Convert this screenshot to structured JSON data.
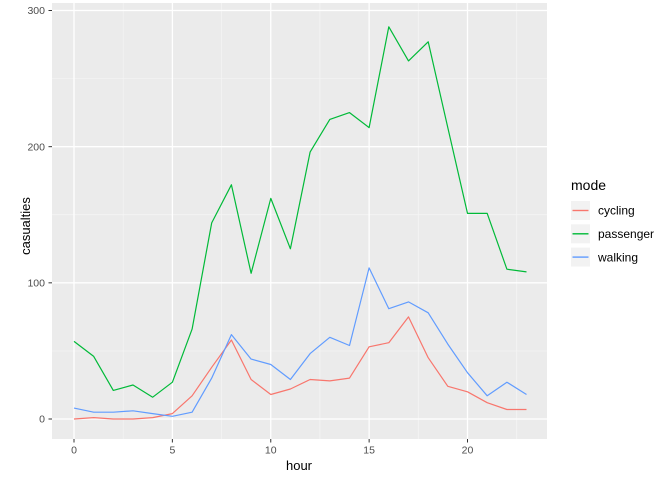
{
  "chart_data": {
    "type": "line",
    "title": "",
    "xlabel": "hour",
    "ylabel": "casualties",
    "legend_title": "mode",
    "legend_position": "right",
    "grid": true,
    "x": [
      0,
      1,
      2,
      3,
      4,
      5,
      6,
      7,
      8,
      9,
      10,
      11,
      12,
      13,
      14,
      15,
      16,
      17,
      18,
      19,
      20,
      21,
      22,
      23
    ],
    "series": [
      {
        "name": "cycling",
        "color": "#F8766D",
        "values": [
          0,
          1,
          0,
          0,
          1,
          4,
          17,
          38,
          58,
          29,
          18,
          22,
          29,
          28,
          30,
          53,
          56,
          75,
          45,
          24,
          20,
          12,
          7,
          7
        ]
      },
      {
        "name": "passenger",
        "color": "#00BA38",
        "values": [
          57,
          46,
          21,
          25,
          16,
          27,
          66,
          144,
          172,
          107,
          162,
          125,
          196,
          220,
          225,
          214,
          288,
          263,
          277,
          214,
          151,
          151,
          110,
          108
        ]
      },
      {
        "name": "walking",
        "color": "#619CFF",
        "values": [
          8,
          5,
          5,
          6,
          4,
          2,
          5,
          30,
          62,
          44,
          40,
          29,
          48,
          60,
          54,
          111,
          81,
          86,
          78,
          55,
          34,
          17,
          27,
          18
        ]
      }
    ],
    "x_ticks": [
      0,
      5,
      10,
      15,
      20
    ],
    "y_ticks": [
      0,
      100,
      200,
      300
    ],
    "x_minor_ticks": [
      2.5,
      7.5,
      12.5,
      17.5,
      22.5
    ],
    "y_minor_ticks": [
      50,
      150,
      250
    ],
    "xlim": [
      -1.118,
      24.04
    ],
    "ylim": [
      -14.69,
      305.51
    ],
    "colors": {
      "panel_bg": "#EBEBEB",
      "grid_major": "#FFFFFF",
      "grid_minor": "#F5F5F5",
      "tick_mark": "#333333",
      "tick_label": "#4D4D4D",
      "axis_title": "#000000",
      "legend_key_bg": "#F2F2F2",
      "legend_text": "#000000",
      "page_bg": "#FFFFFF"
    }
  }
}
